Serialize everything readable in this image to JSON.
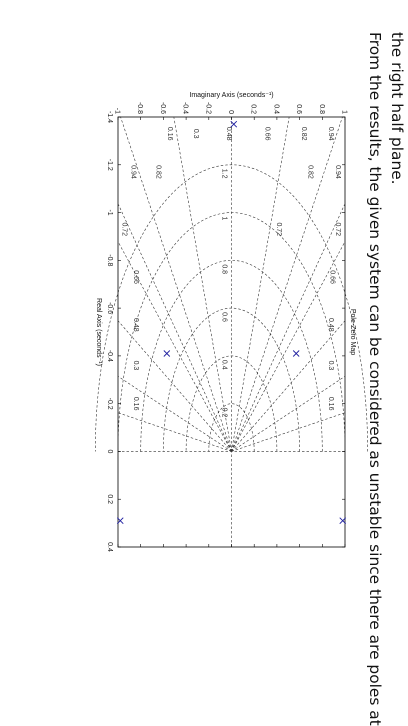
{
  "caption": {
    "line1": "From the results, the given system can be considered as unstable since there are poles at",
    "line2": "the right half plane."
  },
  "chart_data": {
    "type": "scatter",
    "title": "Pole-Zero Map",
    "xlabel": "Real Axis (seconds⁻¹)",
    "ylabel": "Imaginary Axis (seconds⁻¹)",
    "xlim": [
      -1.4,
      0.4
    ],
    "ylim": [
      -1,
      1
    ],
    "xticks": [
      "-1.4",
      "-1.2",
      "-1",
      "-0.8",
      "-0.6",
      "-0.4",
      "-0.2",
      "0",
      "0.2",
      "0.4"
    ],
    "yticks": [
      "-1",
      "-0.8",
      "-0.6",
      "-0.4",
      "-0.2",
      "0",
      "0.2",
      "0.4",
      "0.6",
      "0.8",
      "1"
    ],
    "grid": true,
    "grid_type": "s-plane damping ratio / natural frequency",
    "damping_labels": [
      "0.94",
      "0.82",
      "0.66",
      "0.48",
      "0.3",
      "0.16",
      "0.94",
      "0.82",
      "0.66",
      "0.48",
      "0.3",
      "0.16",
      "0.72",
      "0.72",
      "0.94",
      "0.82",
      "0.66",
      "0.48",
      "0.3",
      "0.16",
      "0.72"
    ],
    "damping_values": [
      0.94,
      0.82,
      0.66,
      0.48,
      0.3,
      0.16
    ],
    "wn_labels": [
      "1.2",
      "1",
      "0.8",
      "0.6",
      "0.4",
      "0.2"
    ],
    "wn_values": [
      1.2,
      1.0,
      0.8,
      0.6,
      0.4,
      0.2
    ],
    "series": [
      {
        "marker": "x",
        "color": "#1f1fa0",
        "points": [
          {
            "x": -1.37,
            "y": 0.02
          },
          {
            "x": -0.41,
            "y": 0.57
          },
          {
            "x": -0.41,
            "y": -0.57
          },
          {
            "x": 0.29,
            "y": 0.98
          },
          {
            "x": 0.29,
            "y": -0.98
          }
        ]
      }
    ]
  }
}
